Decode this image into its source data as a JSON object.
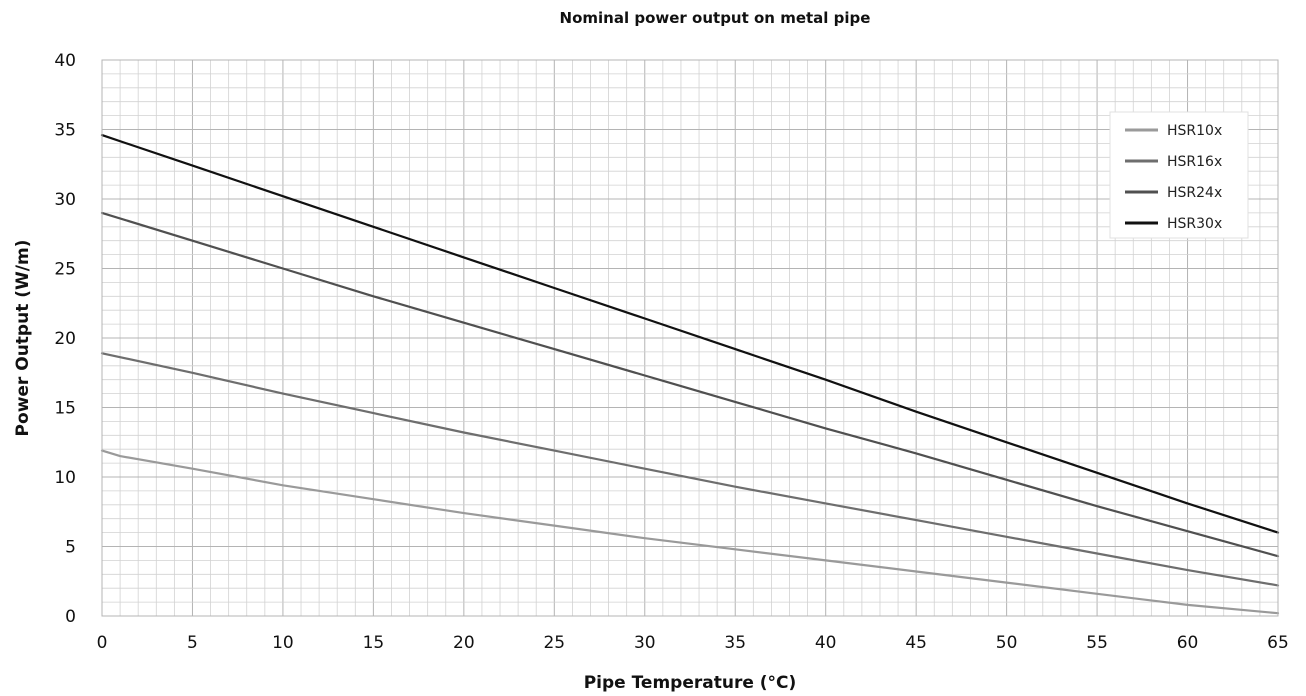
{
  "chart_data": {
    "type": "line",
    "title": "Nominal power output on metal pipe",
    "xlabel": "Pipe Temperature (°C)",
    "ylabel": "Power Output (W/m)",
    "xlim": [
      0,
      65
    ],
    "ylim": [
      0,
      40
    ],
    "x_ticks": [
      0,
      5,
      10,
      15,
      20,
      25,
      30,
      35,
      40,
      45,
      50,
      55,
      60,
      65
    ],
    "y_ticks": [
      0,
      5,
      10,
      15,
      20,
      25,
      30,
      35,
      40
    ],
    "grid": true,
    "legend_position": "top-right",
    "series": [
      {
        "name": "HSR10x",
        "color": "#9a9a9a",
        "x": [
          0,
          1,
          5,
          10,
          15,
          20,
          25,
          30,
          35,
          40,
          45,
          50,
          55,
          60,
          65
        ],
        "y": [
          11.9,
          11.5,
          10.6,
          9.4,
          8.4,
          7.4,
          6.5,
          5.6,
          4.8,
          4.0,
          3.2,
          2.4,
          1.6,
          0.8,
          0.2
        ]
      },
      {
        "name": "HSR16x",
        "color": "#6e6e6e",
        "x": [
          0,
          5,
          10,
          15,
          20,
          25,
          30,
          35,
          40,
          45,
          50,
          55,
          60,
          65
        ],
        "y": [
          18.9,
          17.5,
          16.0,
          14.6,
          13.2,
          11.9,
          10.6,
          9.3,
          8.1,
          6.9,
          5.7,
          4.5,
          3.3,
          2.2
        ]
      },
      {
        "name": "HSR24x",
        "color": "#505050",
        "x": [
          0,
          5,
          10,
          15,
          20,
          25,
          30,
          35,
          40,
          45,
          50,
          55,
          60,
          65
        ],
        "y": [
          29.0,
          27.0,
          25.0,
          23.0,
          21.1,
          19.2,
          17.3,
          15.4,
          13.5,
          11.7,
          9.8,
          7.9,
          6.1,
          4.3
        ]
      },
      {
        "name": "HSR30x",
        "color": "#111111",
        "x": [
          0,
          5,
          10,
          15,
          20,
          25,
          30,
          35,
          40,
          45,
          50,
          55,
          60,
          65
        ],
        "y": [
          34.6,
          32.4,
          30.2,
          28.0,
          25.8,
          23.6,
          21.4,
          19.2,
          17.0,
          14.7,
          12.5,
          10.3,
          8.1,
          6.0
        ]
      }
    ]
  }
}
